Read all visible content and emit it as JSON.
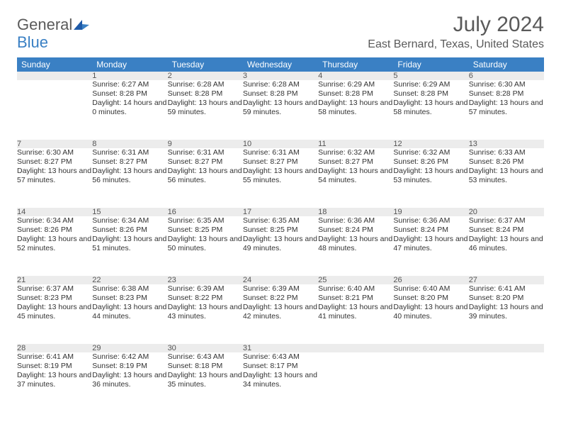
{
  "brand": {
    "word1": "General",
    "word2": "Blue"
  },
  "header": {
    "month": "July 2024",
    "location": "East Bernard, Texas, United States"
  },
  "colors": {
    "accent": "#3a80c4",
    "header_text": "#ffffff",
    "daynum_bg": "#ececec",
    "body_text": "#333333",
    "muted_text": "#5a5a5a"
  },
  "day_names": [
    "Sunday",
    "Monday",
    "Tuesday",
    "Wednesday",
    "Thursday",
    "Friday",
    "Saturday"
  ],
  "weeks": [
    {
      "nums": [
        "",
        "1",
        "2",
        "3",
        "4",
        "5",
        "6"
      ],
      "cells": [
        null,
        {
          "sr": "6:27 AM",
          "ss": "8:28 PM",
          "dl": "14 hours and 0 minutes."
        },
        {
          "sr": "6:28 AM",
          "ss": "8:28 PM",
          "dl": "13 hours and 59 minutes."
        },
        {
          "sr": "6:28 AM",
          "ss": "8:28 PM",
          "dl": "13 hours and 59 minutes."
        },
        {
          "sr": "6:29 AM",
          "ss": "8:28 PM",
          "dl": "13 hours and 58 minutes."
        },
        {
          "sr": "6:29 AM",
          "ss": "8:28 PM",
          "dl": "13 hours and 58 minutes."
        },
        {
          "sr": "6:30 AM",
          "ss": "8:28 PM",
          "dl": "13 hours and 57 minutes."
        }
      ]
    },
    {
      "nums": [
        "7",
        "8",
        "9",
        "10",
        "11",
        "12",
        "13"
      ],
      "cells": [
        {
          "sr": "6:30 AM",
          "ss": "8:27 PM",
          "dl": "13 hours and 57 minutes."
        },
        {
          "sr": "6:31 AM",
          "ss": "8:27 PM",
          "dl": "13 hours and 56 minutes."
        },
        {
          "sr": "6:31 AM",
          "ss": "8:27 PM",
          "dl": "13 hours and 56 minutes."
        },
        {
          "sr": "6:31 AM",
          "ss": "8:27 PM",
          "dl": "13 hours and 55 minutes."
        },
        {
          "sr": "6:32 AM",
          "ss": "8:27 PM",
          "dl": "13 hours and 54 minutes."
        },
        {
          "sr": "6:32 AM",
          "ss": "8:26 PM",
          "dl": "13 hours and 53 minutes."
        },
        {
          "sr": "6:33 AM",
          "ss": "8:26 PM",
          "dl": "13 hours and 53 minutes."
        }
      ]
    },
    {
      "nums": [
        "14",
        "15",
        "16",
        "17",
        "18",
        "19",
        "20"
      ],
      "cells": [
        {
          "sr": "6:34 AM",
          "ss": "8:26 PM",
          "dl": "13 hours and 52 minutes."
        },
        {
          "sr": "6:34 AM",
          "ss": "8:26 PM",
          "dl": "13 hours and 51 minutes."
        },
        {
          "sr": "6:35 AM",
          "ss": "8:25 PM",
          "dl": "13 hours and 50 minutes."
        },
        {
          "sr": "6:35 AM",
          "ss": "8:25 PM",
          "dl": "13 hours and 49 minutes."
        },
        {
          "sr": "6:36 AM",
          "ss": "8:24 PM",
          "dl": "13 hours and 48 minutes."
        },
        {
          "sr": "6:36 AM",
          "ss": "8:24 PM",
          "dl": "13 hours and 47 minutes."
        },
        {
          "sr": "6:37 AM",
          "ss": "8:24 PM",
          "dl": "13 hours and 46 minutes."
        }
      ]
    },
    {
      "nums": [
        "21",
        "22",
        "23",
        "24",
        "25",
        "26",
        "27"
      ],
      "cells": [
        {
          "sr": "6:37 AM",
          "ss": "8:23 PM",
          "dl": "13 hours and 45 minutes."
        },
        {
          "sr": "6:38 AM",
          "ss": "8:23 PM",
          "dl": "13 hours and 44 minutes."
        },
        {
          "sr": "6:39 AM",
          "ss": "8:22 PM",
          "dl": "13 hours and 43 minutes."
        },
        {
          "sr": "6:39 AM",
          "ss": "8:22 PM",
          "dl": "13 hours and 42 minutes."
        },
        {
          "sr": "6:40 AM",
          "ss": "8:21 PM",
          "dl": "13 hours and 41 minutes."
        },
        {
          "sr": "6:40 AM",
          "ss": "8:20 PM",
          "dl": "13 hours and 40 minutes."
        },
        {
          "sr": "6:41 AM",
          "ss": "8:20 PM",
          "dl": "13 hours and 39 minutes."
        }
      ]
    },
    {
      "nums": [
        "28",
        "29",
        "30",
        "31",
        "",
        "",
        ""
      ],
      "cells": [
        {
          "sr": "6:41 AM",
          "ss": "8:19 PM",
          "dl": "13 hours and 37 minutes."
        },
        {
          "sr": "6:42 AM",
          "ss": "8:19 PM",
          "dl": "13 hours and 36 minutes."
        },
        {
          "sr": "6:43 AM",
          "ss": "8:18 PM",
          "dl": "13 hours and 35 minutes."
        },
        {
          "sr": "6:43 AM",
          "ss": "8:17 PM",
          "dl": "13 hours and 34 minutes."
        },
        null,
        null,
        null
      ]
    }
  ],
  "labels": {
    "sunrise": "Sunrise: ",
    "sunset": "Sunset: ",
    "daylight": "Daylight: "
  }
}
